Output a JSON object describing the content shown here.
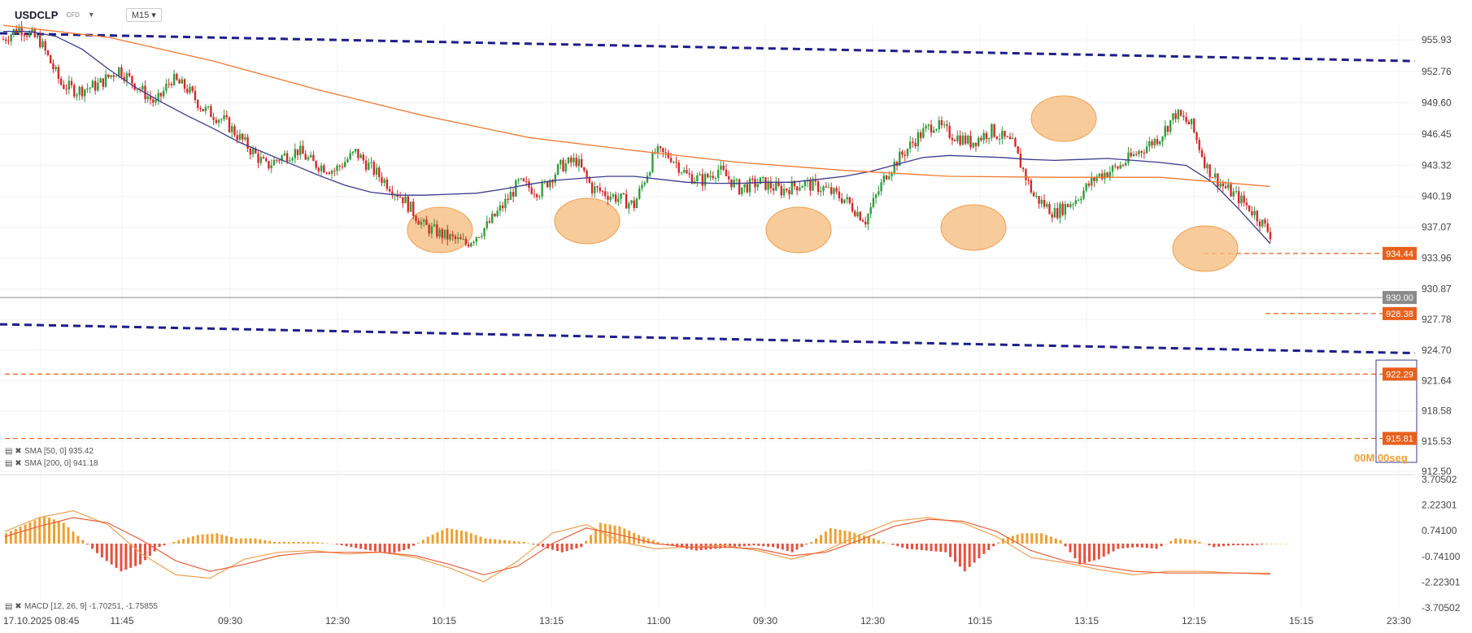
{
  "toolbar": {
    "symbol": "USDCLP",
    "instrument_type": "CFD",
    "timeframe": "M15"
  },
  "indicators": {
    "sma50": "SMA [50, 0] 935.42",
    "sma200": "SMA [200, 0] 941.18",
    "macd": "MACD [12, 26, 9] -1.70251, -1.75855"
  },
  "timer": "00M 00seg",
  "price_tags": {
    "current": "930.00",
    "level_upper": "934.44",
    "level_low": "928.38",
    "level_922": "922.29",
    "level_915": "915.81"
  },
  "chart_data": {
    "type": "line",
    "title": "USDCLP",
    "y_axis": {
      "ylim": [
        912.5,
        957.5
      ],
      "ticks": [
        "955.93",
        "952.76",
        "949.60",
        "946.45",
        "943.32",
        "940.19",
        "937.07",
        "933.96",
        "930.87",
        "927.78",
        "924.70",
        "921.64",
        "918.58",
        "915.53",
        "912.50"
      ]
    },
    "x_axis": {
      "ticks": [
        "17.10.2025  08:45",
        "11:45",
        "09:30",
        "12:30",
        "10:15",
        "13:15",
        "11:00",
        "09:30",
        "12:30",
        "10:15",
        "13:15",
        "12:15",
        "15:15",
        "23:30"
      ]
    },
    "series": [
      {
        "name": "USDCLP",
        "x": [
          0,
          6,
          14,
          22,
          28,
          36,
          44,
          52,
          58,
          64,
          70,
          76,
          84,
          92,
          100,
          106,
          112,
          118,
          126,
          134,
          140,
          146,
          152,
          160,
          168,
          176,
          184,
          190,
          196,
          204,
          212,
          218,
          224,
          232,
          240,
          248,
          254,
          260,
          266,
          272,
          280,
          288,
          296,
          304,
          312,
          320,
          328,
          336,
          342,
          348,
          354,
          360,
          368,
          376,
          384,
          392,
          400,
          408,
          416,
          424,
          432,
          440,
          446,
          452,
          458,
          464,
          470,
          476,
          482
        ],
        "values": [
          956.0,
          957.2,
          955.8,
          951.5,
          950.8,
          951.4,
          953.0,
          951.0,
          949.5,
          952.0,
          951.0,
          949.0,
          947.8,
          945.5,
          943.2,
          944.2,
          944.8,
          943.5,
          942.8,
          944.6,
          943.0,
          941.5,
          940.0,
          937.2,
          936.2,
          935.4,
          937.2,
          939.2,
          941.5,
          940.7,
          943.2,
          943.8,
          941.0,
          940.2,
          939.3,
          944.6,
          944.2,
          942.3,
          941.8,
          942.9,
          941.0,
          941.6,
          940.8,
          941.5,
          941.0,
          939.9,
          937.8,
          942.5,
          944.4,
          946.2,
          947.5,
          946.5,
          945.6,
          946.8,
          945.4,
          940.2,
          938.5,
          939.9,
          942.2,
          943.1,
          944.7,
          946.2,
          948.5,
          947.3,
          943.0,
          941.2,
          940.0,
          938.5,
          936.4
        ]
      },
      {
        "name": "SMA 50",
        "x": [
          0,
          10,
          20,
          30,
          40,
          50,
          60,
          70,
          80,
          90,
          100,
          110,
          120,
          130,
          140,
          150,
          160,
          170,
          180,
          190,
          200,
          210,
          220,
          230,
          240,
          250,
          260,
          270,
          280,
          290,
          300,
          310,
          320,
          330,
          340,
          350,
          360,
          370,
          380,
          390,
          400,
          410,
          420,
          430,
          440,
          450,
          460,
          470,
          482
        ],
        "values": [
          956.8,
          956.8,
          956.3,
          955.0,
          953.0,
          951.2,
          949.7,
          948.3,
          947.0,
          945.6,
          944.5,
          943.4,
          942.3,
          941.3,
          940.6,
          940.3,
          940.3,
          940.4,
          940.5,
          940.9,
          941.4,
          941.8,
          942.0,
          942.2,
          942.2,
          941.9,
          941.6,
          941.5,
          941.5,
          941.6,
          941.6,
          941.9,
          942.2,
          942.7,
          943.4,
          944.1,
          944.3,
          944.2,
          944.1,
          943.9,
          943.8,
          943.9,
          944.0,
          943.8,
          943.6,
          943.3,
          941.6,
          938.9,
          935.42
        ]
      },
      {
        "name": "SMA 200",
        "x": [
          0,
          40,
          80,
          120,
          160,
          200,
          240,
          280,
          320,
          360,
          400,
          440,
          482
        ],
        "values": [
          957.4,
          956.2,
          953.8,
          950.9,
          948.3,
          946.1,
          944.8,
          943.6,
          942.8,
          942.2,
          942.1,
          942.1,
          941.18
        ]
      }
    ],
    "macd": {
      "yticks": [
        "3.70502",
        "2.22301",
        "0.74100",
        "-0.74100",
        "-2.22301",
        "-3.70502"
      ],
      "histogram": [
        0.6,
        1.1,
        1.6,
        1.2,
        0.2,
        -0.8,
        -1.6,
        -1.2,
        -0.2,
        0.2,
        0.5,
        0.6,
        0.3,
        0.3,
        0.1,
        0.1,
        0.1,
        0.0,
        -0.2,
        -0.4,
        -0.6,
        -0.3,
        0.4,
        0.9,
        0.7,
        0.3,
        0.2,
        0.1,
        -0.2,
        -0.5,
        -0.2,
        1.2,
        1.0,
        0.5,
        0.1,
        -0.2,
        -0.4,
        -0.3,
        -0.2,
        -0.1,
        -0.2,
        -0.5,
        0.1,
        0.9,
        0.7,
        0.4,
        0.0,
        -0.3,
        -0.4,
        -0.5,
        -1.6,
        -0.6,
        0.3,
        0.6,
        0.6,
        0.2,
        -1.2,
        -0.9,
        -0.3,
        -0.2,
        -0.3,
        0.3,
        0.2,
        -0.2,
        -0.1,
        -0.1,
        0.0
      ],
      "macd_line": [
        0.7,
        1.5,
        1.9,
        1.1,
        -0.6,
        -1.8,
        -2.0,
        -0.9,
        -0.5,
        -0.4,
        -0.6,
        -0.5,
        -0.8,
        -1.4,
        -2.2,
        -1.0,
        0.6,
        1.1,
        0.1,
        -0.3,
        -0.2,
        -0.1,
        -0.4,
        -0.9,
        -0.4,
        0.5,
        1.3,
        1.5,
        1.2,
        0.4,
        -0.8,
        -1.1,
        -1.5,
        -1.8,
        -1.6,
        -1.6,
        -1.7,
        -1.70251
      ],
      "signal_line": [
        0.4,
        1.0,
        1.5,
        1.2,
        0.2,
        -1.0,
        -1.6,
        -1.2,
        -0.7,
        -0.5,
        -0.5,
        -0.5,
        -0.7,
        -1.2,
        -1.8,
        -1.3,
        0.0,
        0.9,
        0.5,
        0.0,
        -0.2,
        -0.2,
        -0.3,
        -0.7,
        -0.5,
        0.2,
        1.0,
        1.4,
        1.3,
        0.7,
        -0.4,
        -1.0,
        -1.3,
        -1.6,
        -1.7,
        -1.7,
        -1.7,
        -1.75855
      ]
    }
  }
}
